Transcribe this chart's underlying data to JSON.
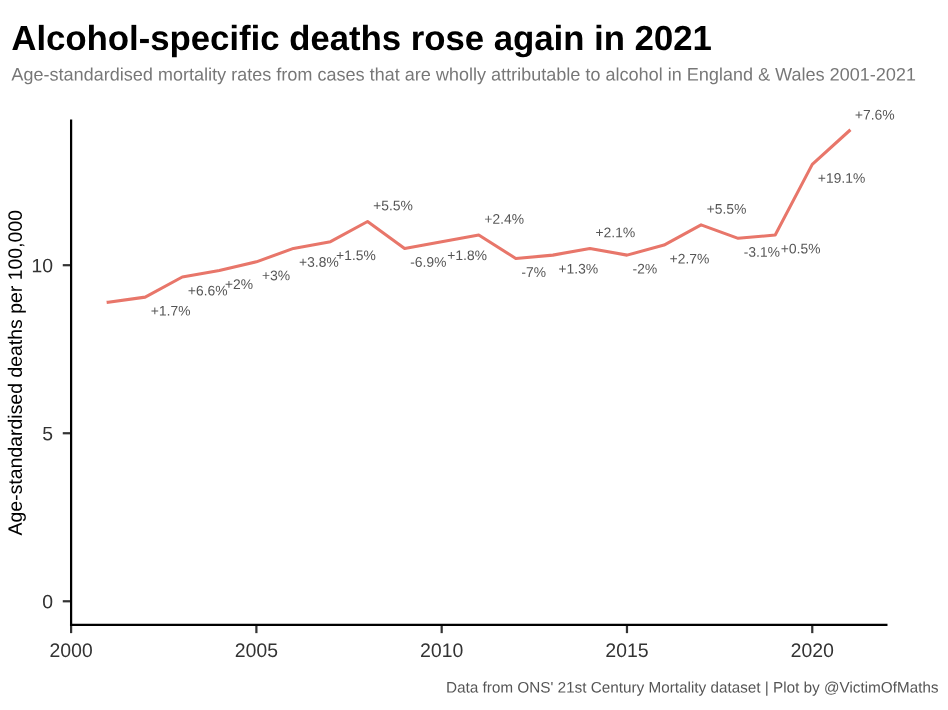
{
  "chart_data": {
    "type": "line",
    "title": "Alcohol-specific deaths rose again in 2021",
    "subtitle": "Age-standardised mortality rates from cases that are wholly attributable to alcohol in England & Wales 2001-2021",
    "ylabel": "Age-standardised deaths per 100,000",
    "x": [
      2001,
      2002,
      2003,
      2004,
      2005,
      2006,
      2007,
      2008,
      2009,
      2010,
      2011,
      2012,
      2013,
      2014,
      2015,
      2016,
      2017,
      2018,
      2019,
      2020,
      2021
    ],
    "series": [
      {
        "color": "#e8766a",
        "values": [
          8.9,
          9.05,
          9.65,
          9.84,
          10.1,
          10.5,
          10.7,
          11.3,
          10.5,
          10.7,
          10.9,
          10.2,
          10.3,
          10.5,
          10.3,
          10.6,
          11.2,
          10.8,
          10.9,
          13.0,
          14.0
        ]
      }
    ],
    "annotations": [
      {
        "text": "+1.7%",
        "x": 2002,
        "y": 9.05
      },
      {
        "text": "+6.6%",
        "x": 2003,
        "y": 9.65
      },
      {
        "text": "+2%",
        "x": 2004,
        "y": 9.84
      },
      {
        "text": "+3%",
        "x": 2005,
        "y": 10.1
      },
      {
        "text": "+3.8%",
        "x": 2006,
        "y": 10.5
      },
      {
        "text": "+1.5%",
        "x": 2007,
        "y": 10.7
      },
      {
        "text": "+5.5%",
        "x": 2008,
        "y": 11.3
      },
      {
        "text": "-6.9%",
        "x": 2009,
        "y": 10.5
      },
      {
        "text": "+1.8%",
        "x": 2010,
        "y": 10.7
      },
      {
        "text": "+2.4%",
        "x": 2011,
        "y": 10.9
      },
      {
        "text": "-7%",
        "x": 2012,
        "y": 10.2
      },
      {
        "text": "+1.3%",
        "x": 2013,
        "y": 10.3
      },
      {
        "text": "+2.1%",
        "x": 2014,
        "y": 10.5
      },
      {
        "text": "-2%",
        "x": 2015,
        "y": 10.3
      },
      {
        "text": "+2.7%",
        "x": 2016,
        "y": 10.6
      },
      {
        "text": "+5.5%",
        "x": 2017,
        "y": 11.2
      },
      {
        "text": "-3.1%",
        "x": 2018,
        "y": 10.8
      },
      {
        "text": "+0.5%",
        "x": 2019,
        "y": 10.9
      },
      {
        "text": "+19.1%",
        "x": 2020,
        "y": 13.0
      },
      {
        "text": "+7.6%",
        "x": 2021,
        "y": 14.0
      },
      "Data from ONS' 21st Century Mortality dataset | Plot by @VictimOfMaths"
    ],
    "xlim": [
      2000,
      2022
    ],
    "xticks": [
      2000,
      2005,
      2010,
      2015,
      2020
    ],
    "ylim": [
      -0.7,
      14.3
    ],
    "yticks": [
      0,
      5,
      10
    ],
    "grid": false,
    "legend": false,
    "marker": "none",
    "line_style": "solid"
  }
}
